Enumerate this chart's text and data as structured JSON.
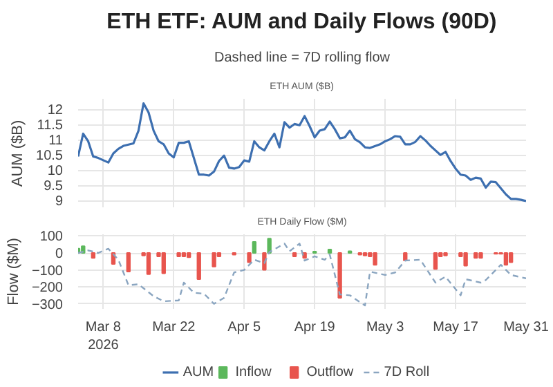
{
  "chart_data": [
    {
      "type": "line",
      "title": "ETH ETF: AUM and Daily Flows (90D)",
      "subtitle": "Dashed line = 7D rolling flow",
      "annotations": [
        "ETH AUM ($B)"
      ],
      "ylabel": "AUM ($B)",
      "xlim": [
        "2026-03-03",
        "2026-05-31"
      ],
      "xticks": [
        {
          "value": "2026-03-08",
          "label": null
        },
        {
          "value": "2026-03-22",
          "label": null
        },
        {
          "value": "2026-04-05",
          "label": null
        },
        {
          "value": "2026-04-19",
          "label": null
        },
        {
          "value": "2026-05-03",
          "label": null
        },
        {
          "value": "2026-05-17",
          "label": null
        },
        {
          "value": "2026-05-31",
          "label": null
        }
      ],
      "ylim": [
        8.75,
        12.35
      ],
      "yticks": [
        9,
        9.5,
        10,
        10.5,
        11,
        11.5,
        12
      ],
      "tick_labels": "y",
      "grid": true,
      "marker": "none",
      "series": [
        {
          "name": "AUM",
          "color": "#3d6fb0",
          "line_style": "solid",
          "x": [
            "2026-03-03",
            "2026-03-04",
            "2026-03-05",
            "2026-03-06",
            "2026-03-07",
            "2026-03-09",
            "2026-03-10",
            "2026-03-11",
            "2026-03-12",
            "2026-03-14",
            "2026-03-15",
            "2026-03-16",
            "2026-03-17",
            "2026-03-18",
            "2026-03-19",
            "2026-03-20",
            "2026-03-21",
            "2026-03-22",
            "2026-03-23",
            "2026-03-24",
            "2026-03-25",
            "2026-03-27",
            "2026-03-28",
            "2026-03-29",
            "2026-03-30",
            "2026-03-31",
            "2026-04-01",
            "2026-04-02",
            "2026-04-03",
            "2026-04-04",
            "2026-04-05",
            "2026-04-06",
            "2026-04-07",
            "2026-04-08",
            "2026-04-09",
            "2026-04-10",
            "2026-04-11",
            "2026-04-12",
            "2026-04-13",
            "2026-04-14",
            "2026-04-15",
            "2026-04-16",
            "2026-04-17",
            "2026-04-18",
            "2026-04-19",
            "2026-04-20",
            "2026-04-21",
            "2026-04-22",
            "2026-04-23",
            "2026-04-24",
            "2026-04-25",
            "2026-04-26",
            "2026-04-27",
            "2026-04-28",
            "2026-04-29",
            "2026-04-30",
            "2026-05-02",
            "2026-05-03",
            "2026-05-04",
            "2026-05-05",
            "2026-05-06",
            "2026-05-07",
            "2026-05-08",
            "2026-05-09",
            "2026-05-10",
            "2026-05-11",
            "2026-05-12",
            "2026-05-13",
            "2026-05-14",
            "2026-05-15",
            "2026-05-16",
            "2026-05-17",
            "2026-05-18",
            "2026-05-19",
            "2026-05-20",
            "2026-05-21",
            "2026-05-22",
            "2026-05-23",
            "2026-05-24",
            "2026-05-25",
            "2026-05-26",
            "2026-05-27",
            "2026-05-28",
            "2026-05-29",
            "2026-05-30",
            "2026-05-31"
          ],
          "values": [
            10.45,
            11.2,
            10.95,
            10.45,
            10.4,
            10.25,
            10.55,
            10.7,
            10.8,
            10.88,
            11.3,
            12.2,
            11.9,
            11.3,
            10.95,
            10.85,
            10.55,
            10.42,
            10.9,
            10.9,
            10.95,
            9.85,
            9.85,
            9.82,
            9.95,
            10.3,
            10.48,
            10.08,
            10.05,
            10.1,
            10.32,
            10.28,
            10.95,
            10.75,
            10.65,
            10.95,
            11.2,
            10.75,
            11.58,
            11.4,
            11.52,
            11.48,
            11.78,
            11.45,
            11.08,
            11.3,
            11.35,
            11.6,
            11.35,
            11.05,
            11.08,
            11.3,
            11.02,
            10.92,
            10.75,
            10.73,
            10.85,
            10.95,
            11.02,
            11.12,
            11.1,
            10.85,
            10.85,
            10.93,
            11.12,
            10.98,
            10.8,
            10.65,
            10.5,
            10.6,
            10.3,
            10.05,
            9.85,
            9.82,
            9.68,
            9.75,
            9.72,
            9.42,
            9.62,
            9.6,
            9.4,
            9.2,
            9.05,
            9.05,
            9.02,
            8.98
          ]
        }
      ]
    },
    {
      "type": "bar",
      "title": "ETH Daily Flow ($M)",
      "ylabel": "Flow ($M)",
      "xlim": [
        "2026-03-03",
        "2026-05-31"
      ],
      "xticks": [
        {
          "value": "2026-03-08",
          "label": "Mar 8\n2026"
        },
        {
          "value": "2026-03-22",
          "label": "Mar 22"
        },
        {
          "value": "2026-04-05",
          "label": "Apr 5"
        },
        {
          "value": "2026-04-19",
          "label": "Apr 19"
        },
        {
          "value": "2026-05-03",
          "label": "May 3"
        },
        {
          "value": "2026-05-17",
          "label": "May 17"
        },
        {
          "value": "2026-05-31",
          "label": "May 31"
        }
      ],
      "ylim": [
        -330,
        110
      ],
      "yticks": [
        {
          "value": -300,
          "label": "−300"
        },
        {
          "value": -200,
          "label": "−200"
        },
        {
          "value": -100,
          "label": "−100"
        },
        0,
        100
      ],
      "grid": true,
      "legend": "bottom",
      "series": [
        {
          "name": "Inflow",
          "color": "#5cb85c",
          "x": [
            "2026-03-03",
            "2026-03-04",
            "2026-04-07",
            "2026-04-10",
            "2026-04-19",
            "2026-04-22",
            "2026-04-26"
          ],
          "values": [
            25,
            40,
            65,
            85,
            8,
            20,
            10
          ]
        },
        {
          "name": "Outflow",
          "color": "#e8554e",
          "x": [
            "2026-03-06",
            "2026-03-10",
            "2026-03-13",
            "2026-03-16",
            "2026-03-17",
            "2026-03-19",
            "2026-03-20",
            "2026-03-23",
            "2026-03-24",
            "2026-03-25",
            "2026-03-27",
            "2026-03-30",
            "2026-03-31",
            "2026-04-03",
            "2026-04-06",
            "2026-04-09",
            "2026-04-15",
            "2026-04-17",
            "2026-04-24",
            "2026-04-28",
            "2026-04-29",
            "2026-04-30",
            "2026-05-01",
            "2026-05-07",
            "2026-05-13",
            "2026-05-14",
            "2026-05-15",
            "2026-05-18",
            "2026-05-19",
            "2026-05-21",
            "2026-05-22",
            "2026-05-25",
            "2026-05-26",
            "2026-05-27",
            "2026-05-28"
          ],
          "values": [
            -30,
            -65,
            -110,
            -15,
            -125,
            -20,
            -120,
            -20,
            -20,
            -25,
            -155,
            -80,
            -20,
            -10,
            -55,
            -100,
            -20,
            -30,
            -265,
            -10,
            -15,
            -20,
            -70,
            -45,
            -95,
            -20,
            -15,
            -20,
            -75,
            -30,
            -30,
            -5,
            -5,
            -70,
            -55
          ]
        },
        {
          "name": "7D Roll",
          "type": "line",
          "line_style": "dashed",
          "color": "#8aa5c0",
          "x": [
            "2026-03-03",
            "2026-03-05",
            "2026-03-07",
            "2026-03-09",
            "2026-03-11",
            "2026-03-13",
            "2026-03-15",
            "2026-03-18",
            "2026-03-20",
            "2026-03-23",
            "2026-03-24",
            "2026-03-26",
            "2026-03-28",
            "2026-03-30",
            "2026-04-01",
            "2026-04-03",
            "2026-04-05",
            "2026-04-07",
            "2026-04-09",
            "2026-04-10",
            "2026-04-13",
            "2026-04-14",
            "2026-04-16",
            "2026-04-17",
            "2026-04-19",
            "2026-04-21",
            "2026-04-22",
            "2026-04-24",
            "2026-04-26",
            "2026-04-29",
            "2026-04-30",
            "2026-05-03",
            "2026-05-05",
            "2026-05-07",
            "2026-05-10",
            "2026-05-13",
            "2026-05-15",
            "2026-05-18",
            "2026-05-19",
            "2026-05-22",
            "2026-05-23",
            "2026-05-26",
            "2026-05-28",
            "2026-05-31"
          ],
          "values": [
            0,
            15,
            0,
            25,
            -40,
            -190,
            -185,
            -255,
            -285,
            -280,
            -175,
            -235,
            -240,
            -300,
            -265,
            -115,
            -100,
            -40,
            -60,
            5,
            55,
            10,
            55,
            -45,
            -20,
            -40,
            -10,
            -245,
            -250,
            -310,
            -110,
            -130,
            -115,
            -45,
            -40,
            -175,
            -140,
            -250,
            -155,
            -175,
            -160,
            -70,
            -130,
            -150
          ]
        }
      ]
    }
  ]
}
